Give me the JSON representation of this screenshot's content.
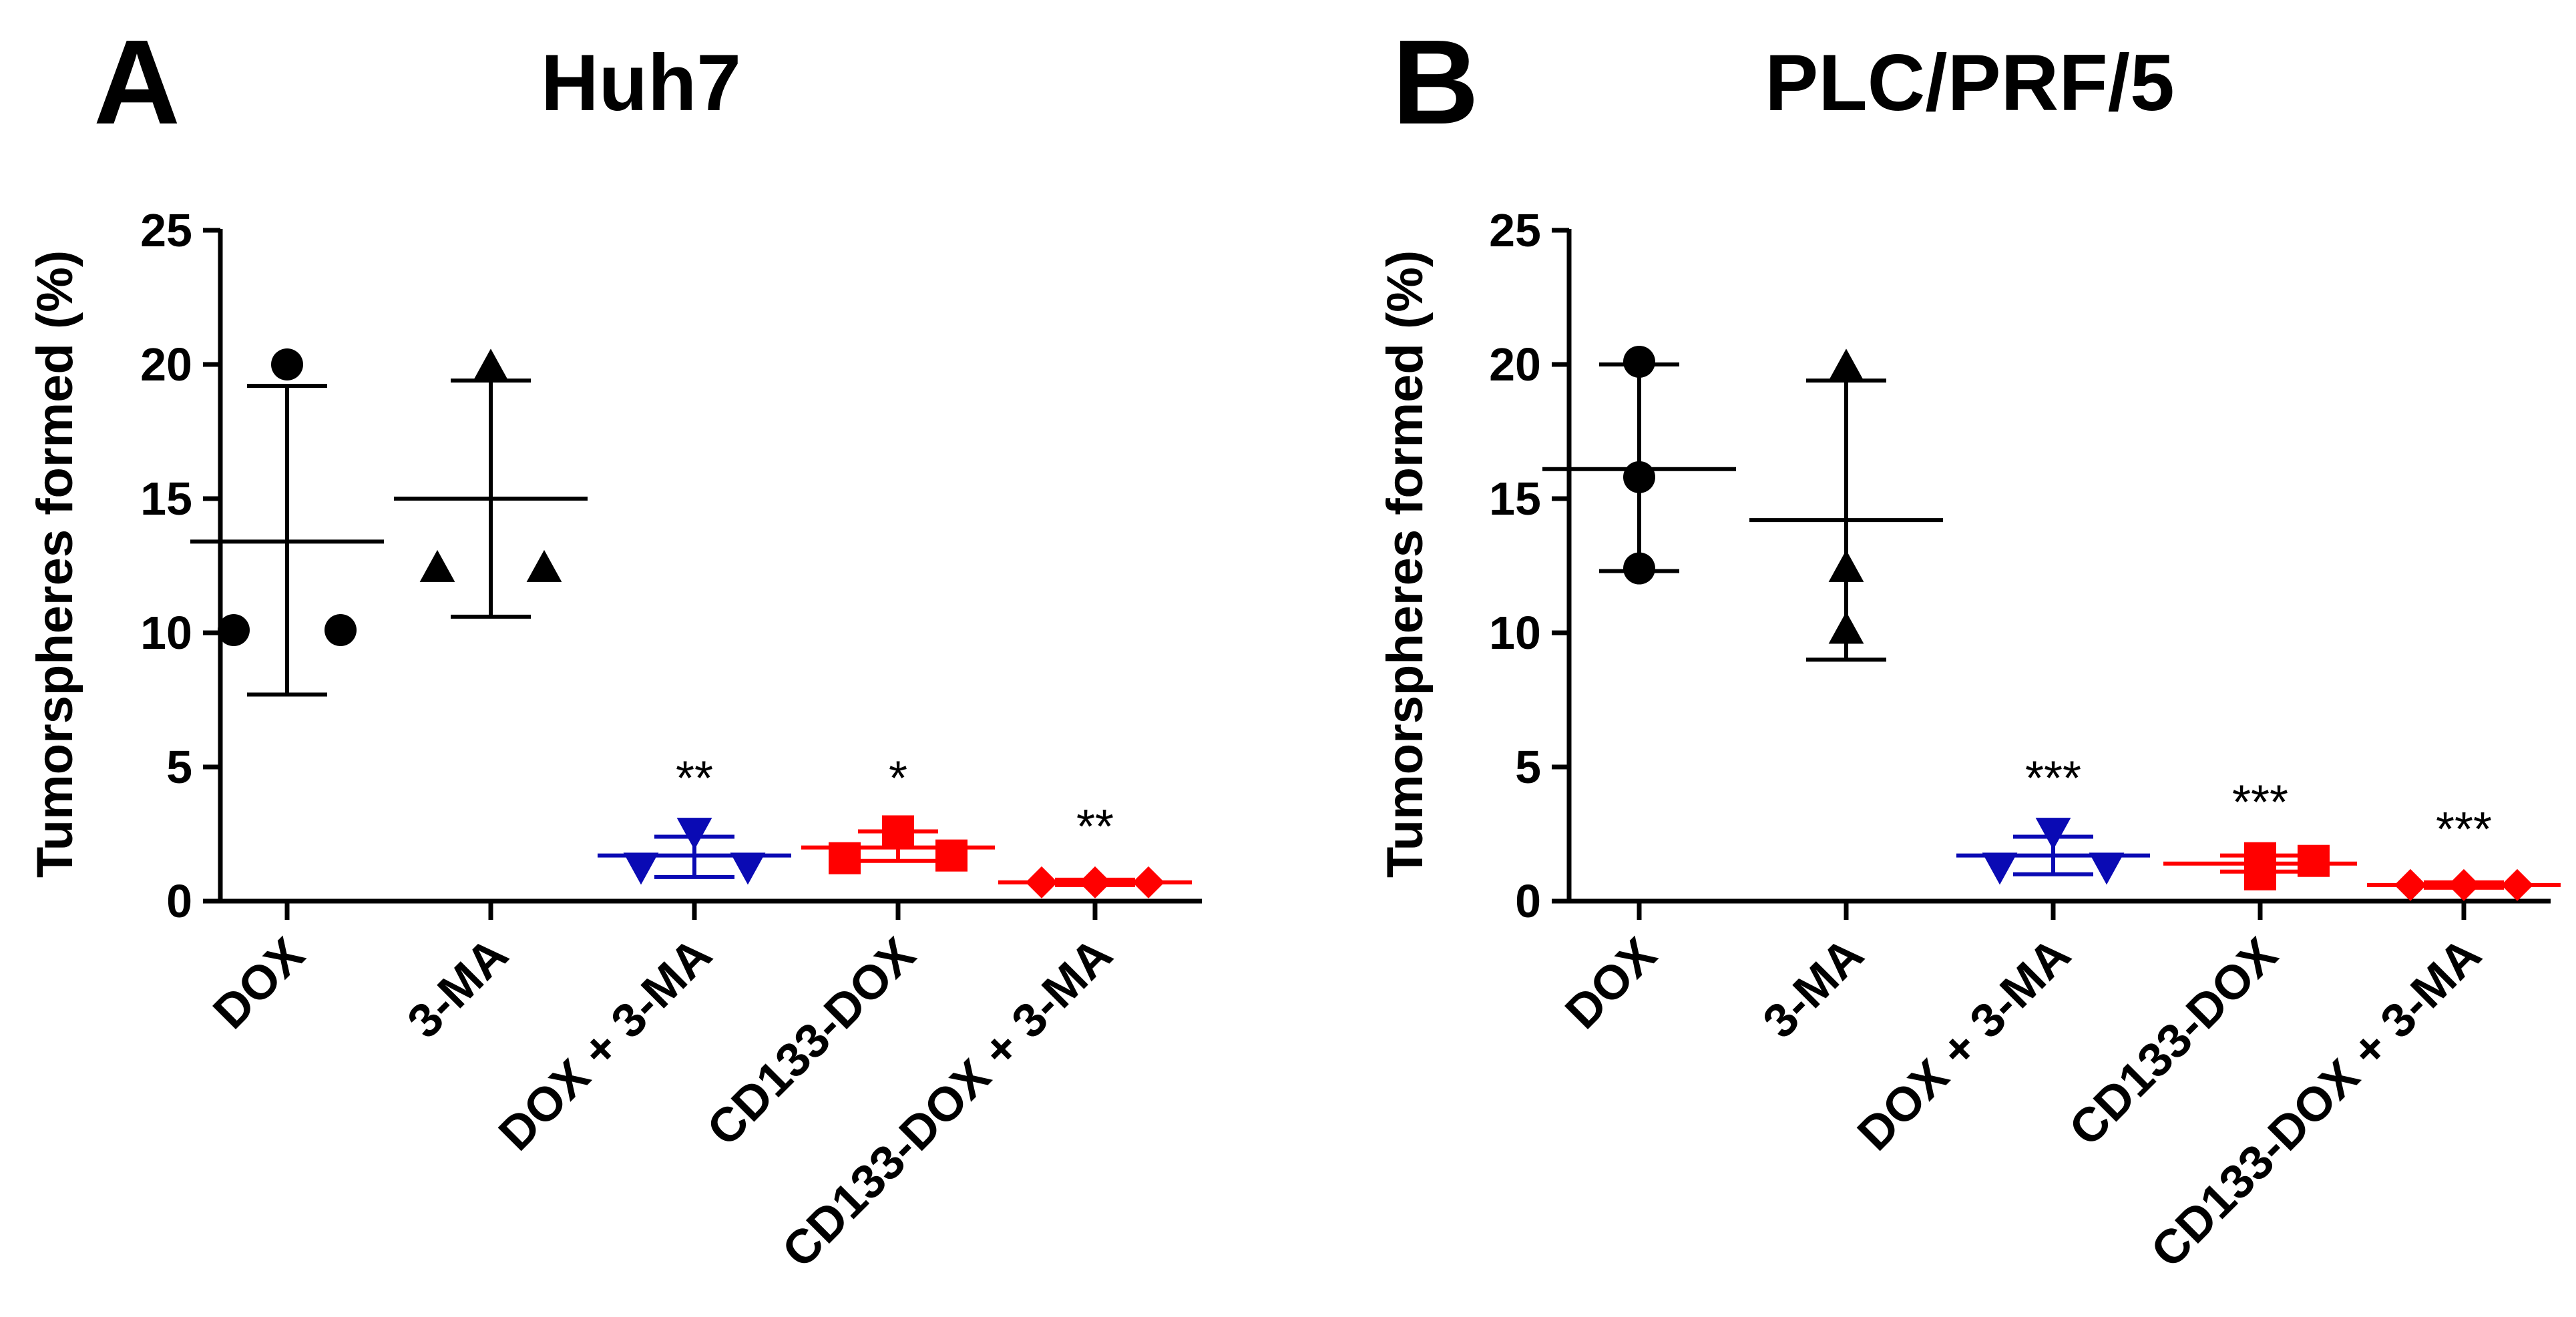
{
  "chart_data": [
    {
      "type": "scatter",
      "panel_label": "A",
      "title": "Huh7",
      "ylabel": "Tumorspheres formed (%)",
      "xlabel": "",
      "ylim": [
        0,
        25
      ],
      "yticks": [
        "0",
        "5",
        "10",
        "15",
        "20",
        "25"
      ],
      "categories": [
        "DOX",
        "3-MA",
        "DOX + 3-MA",
        "CD133-DOX",
        "CD133-DOX + 3-MA"
      ],
      "groups": [
        {
          "name": "DOX",
          "marker": "circle",
          "color": "#000000",
          "points": [
            20.0,
            10.1,
            10.1
          ],
          "mean": 13.4,
          "sd_low": 7.7,
          "sd_high": 19.2,
          "significance": ""
        },
        {
          "name": "3-MA",
          "marker": "triangle-up",
          "color": "#000000",
          "points": [
            19.9,
            12.4,
            12.4
          ],
          "mean": 15.0,
          "sd_low": 10.6,
          "sd_high": 19.4,
          "significance": ""
        },
        {
          "name": "DOX + 3-MA",
          "marker": "triangle-down",
          "color": "#0a0ab4",
          "points": [
            2.6,
            1.3,
            1.3
          ],
          "mean": 1.7,
          "sd_low": 0.9,
          "sd_high": 2.4,
          "significance": "**"
        },
        {
          "name": "CD133-DOX",
          "marker": "square",
          "color": "#ff0000",
          "points": [
            2.6,
            1.6,
            1.7
          ],
          "mean": 2.0,
          "sd_low": 1.5,
          "sd_high": 2.6,
          "significance": "*"
        },
        {
          "name": "CD133-DOX + 3-MA",
          "marker": "diamond",
          "color": "#ff0000",
          "points": [
            0.7,
            0.7,
            0.7
          ],
          "mean": 0.7,
          "sd_low": 0.6,
          "sd_high": 0.8,
          "significance": "**"
        }
      ]
    },
    {
      "type": "scatter",
      "panel_label": "B",
      "title": "PLC/PRF/5",
      "ylabel": "Tumorspheres formed (%)",
      "xlabel": "",
      "ylim": [
        0,
        25
      ],
      "yticks": [
        "0",
        "5",
        "10",
        "15",
        "20",
        "25"
      ],
      "categories": [
        "DOX",
        "3-MA",
        "DOX + 3-MA",
        "CD133-DOX",
        "CD133-DOX + 3-MA"
      ],
      "groups": [
        {
          "name": "DOX",
          "marker": "circle",
          "color": "#000000",
          "points": [
            20.1,
            15.8,
            12.4
          ],
          "mean": 16.1,
          "sd_low": 12.3,
          "sd_high": 20.0,
          "significance": ""
        },
        {
          "name": "3-MA",
          "marker": "triangle-up",
          "color": "#000000",
          "points": [
            19.9,
            12.4,
            10.1
          ],
          "mean": 14.2,
          "sd_low": 9.0,
          "sd_high": 19.4,
          "significance": ""
        },
        {
          "name": "DOX + 3-MA",
          "marker": "triangle-down",
          "color": "#0a0ab4",
          "points": [
            2.6,
            1.3,
            1.3
          ],
          "mean": 1.7,
          "sd_low": 1.0,
          "sd_high": 2.4,
          "significance": "***"
        },
        {
          "name": "CD133-DOX",
          "marker": "square",
          "color": "#ff0000",
          "points": [
            1.6,
            1.0,
            1.5
          ],
          "mean": 1.4,
          "sd_low": 1.1,
          "sd_high": 1.7,
          "significance": "***"
        },
        {
          "name": "CD133-DOX + 3-MA",
          "marker": "diamond",
          "color": "#ff0000",
          "points": [
            0.6,
            0.6,
            0.6
          ],
          "mean": 0.6,
          "sd_low": 0.5,
          "sd_high": 0.7,
          "significance": "***"
        }
      ]
    }
  ]
}
